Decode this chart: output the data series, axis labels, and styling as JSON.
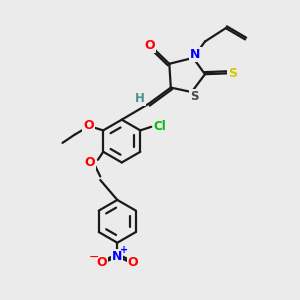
{
  "bg_color": "#ebebeb",
  "bond_color": "#1a1a1a",
  "atom_colors": {
    "O": "#ff0000",
    "N": "#0000ff",
    "S": "#cccc00",
    "S_ring": "#4a4a4a",
    "Cl": "#00bb00",
    "H": "#4a9090",
    "C": "#1a1a1a"
  },
  "figsize": [
    3.0,
    3.0
  ],
  "dpi": 100
}
